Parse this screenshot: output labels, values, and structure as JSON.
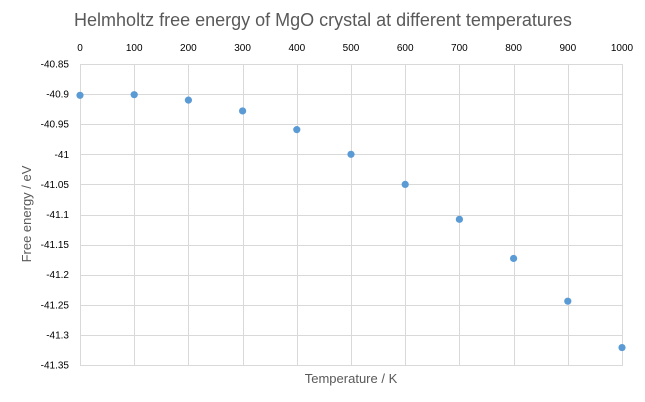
{
  "chart_data": {
    "type": "scatter",
    "title": "Helmholtz free energy of MgO crystal at different temperatures",
    "xlabel": "Temperature / K",
    "ylabel": "Free energy / eV",
    "xlim": [
      0,
      1000
    ],
    "ylim": [
      -41.35,
      -40.85
    ],
    "x_ticks": [
      0,
      100,
      200,
      300,
      400,
      500,
      600,
      700,
      800,
      900,
      1000
    ],
    "x_tick_labels": [
      "0",
      "100",
      "200",
      "300",
      "400",
      "500",
      "600",
      "700",
      "800",
      "900",
      "1000"
    ],
    "y_ticks": [
      -40.85,
      -40.9,
      -40.95,
      -41,
      -41.05,
      -41.1,
      -41.15,
      -41.2,
      -41.25,
      -41.3,
      -41.35
    ],
    "y_tick_labels": [
      "-40.85",
      "-40.9",
      "-40.95",
      "-41",
      "-41.05",
      "-41.1",
      "-41.15",
      "-41.2",
      "-41.25",
      "-41.3",
      "-41.35"
    ],
    "x_axis_position": "top",
    "grid": true,
    "legend": "none",
    "series": [
      {
        "name": "Free energy",
        "color": "#5b9bd5",
        "x": [
          0,
          100,
          200,
          300,
          400,
          500,
          600,
          700,
          800,
          900,
          1000
        ],
        "y": [
          -40.902,
          -40.901,
          -40.91,
          -40.928,
          -40.959,
          -41.0,
          -41.05,
          -41.108,
          -41.173,
          -41.244,
          -41.321
        ]
      }
    ]
  }
}
